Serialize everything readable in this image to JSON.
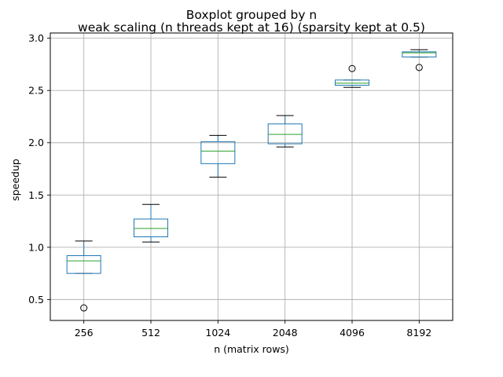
{
  "chart_data": {
    "type": "boxplot",
    "suptitle": "Boxplot grouped by n",
    "title": "weak scaling (n threads kept at 16) (sparsity kept at 0.5)",
    "xlabel": "n (matrix rows)",
    "ylabel": "speedup",
    "ylim": [
      0.3,
      3.05
    ],
    "yticks": [
      0.5,
      1.0,
      1.5,
      2.0,
      2.5,
      3.0
    ],
    "ytick_labels": [
      "0.5",
      "1.0",
      "1.5",
      "2.0",
      "2.5",
      "3.0"
    ],
    "grid": true,
    "categories": [
      "256",
      "512",
      "1024",
      "2048",
      "4096",
      "8192"
    ],
    "boxes": [
      {
        "category": "256",
        "whisker_low": 0.75,
        "q1": 0.75,
        "median": 0.87,
        "q3": 0.92,
        "whisker_high": 1.06,
        "outliers": [
          0.42
        ]
      },
      {
        "category": "512",
        "whisker_low": 1.05,
        "q1": 1.1,
        "median": 1.18,
        "q3": 1.27,
        "whisker_high": 1.41,
        "outliers": []
      },
      {
        "category": "1024",
        "whisker_low": 1.67,
        "q1": 1.8,
        "median": 1.92,
        "q3": 2.01,
        "whisker_high": 2.07,
        "outliers": []
      },
      {
        "category": "2048",
        "whisker_low": 1.96,
        "q1": 1.99,
        "median": 2.08,
        "q3": 2.18,
        "whisker_high": 2.26,
        "outliers": []
      },
      {
        "category": "4096",
        "whisker_low": 2.53,
        "q1": 2.55,
        "median": 2.57,
        "q3": 2.6,
        "whisker_high": 2.6,
        "outliers": [
          2.71
        ]
      },
      {
        "category": "8192",
        "whisker_low": 2.82,
        "q1": 2.82,
        "median": 2.86,
        "q3": 2.87,
        "whisker_high": 2.89,
        "outliers": [
          2.72
        ]
      }
    ],
    "colors": {
      "box": "#1f77b4",
      "median": "#2ca02c",
      "whisker": "#000000",
      "grid": "#b0b0b0"
    }
  }
}
